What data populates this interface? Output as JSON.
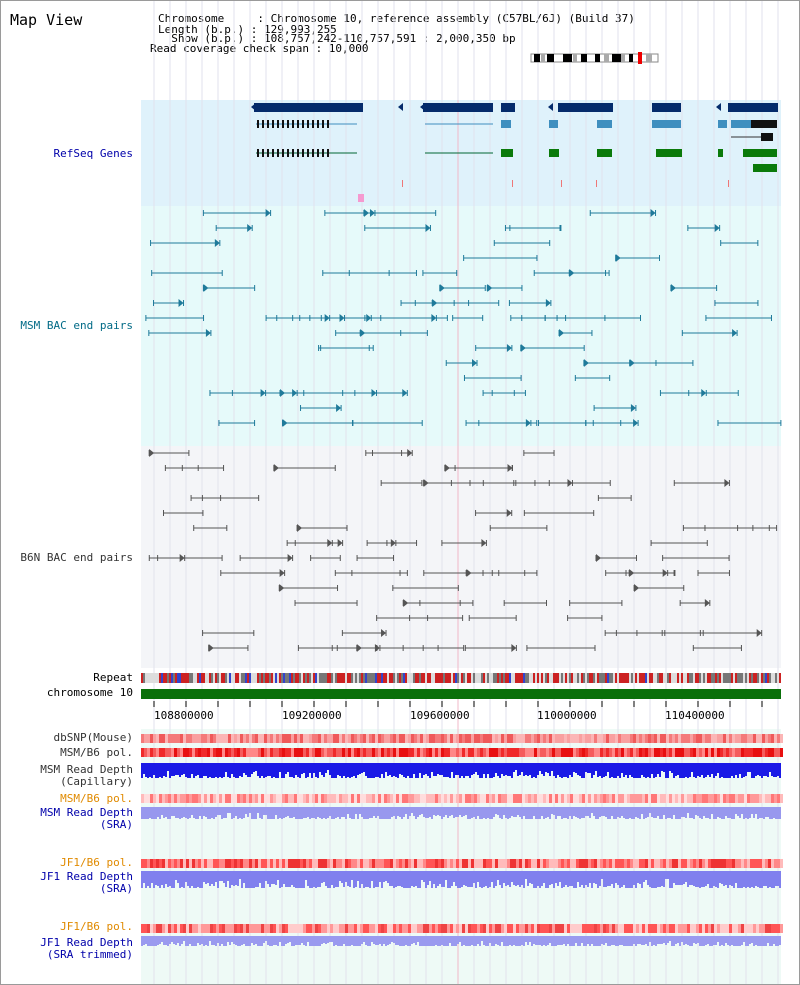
{
  "title": "Map View",
  "info": {
    "chromosome": "Chromosome     : Chromosome 10, reference assembly (C57BL/6J) (Build 37)",
    "length": "Length (b.p.) : 129,993,255",
    "show": "  Show (b.p.) : 108,757,242-110,757,591 : 2,000,350 bp",
    "coverage": "Read coverage check span : 10,000"
  },
  "track_labels": {
    "refseq": "RefSeq Genes",
    "msm_bac": "MSM BAC end pairs",
    "b6n_bac": "B6N BAC end pairs",
    "repeat": "Repeat",
    "chrom": "chromosome 10",
    "dbsnp": "dbSNP(Mouse)",
    "msm_b6_pol": "MSM/B6 pol.",
    "msm_depth_cap_1": "MSM Read Depth",
    "msm_depth_cap_2": "(Capillary)",
    "msm_b6_pol2": "MSM/B6 pol.",
    "msm_depth_sra_1": "MSM Read Depth",
    "msm_depth_sra_2": "(SRA)",
    "jf1_pol": "JF1/B6 pol.",
    "jf1_depth_1": "JF1 Read Depth",
    "jf1_depth_2": "(SRA)",
    "jf1_pol2": "JF1/B6 pol.",
    "jf1_depth_t1": "JF1 Read Depth",
    "jf1_depth_t2": "(SRA trimmed)"
  },
  "axis_ticks": [
    "108800000",
    "109200000",
    "109600000",
    "110000000",
    "110400000"
  ],
  "colors": {
    "refseq_bg": "#dff2fb",
    "bac_bg": "#e6fafa",
    "gene_dark": "#052b6b",
    "gene_mid": "#3f8fbf",
    "gene_green": "#0a7a0a",
    "msm_pair": "#1f7a9a",
    "b6n_pair": "#555555",
    "chromosome": "#0a700a",
    "depth_blue": "#1a1ae6",
    "depth_light": "#8080ee",
    "pol_red": "#f04a4a"
  }
}
